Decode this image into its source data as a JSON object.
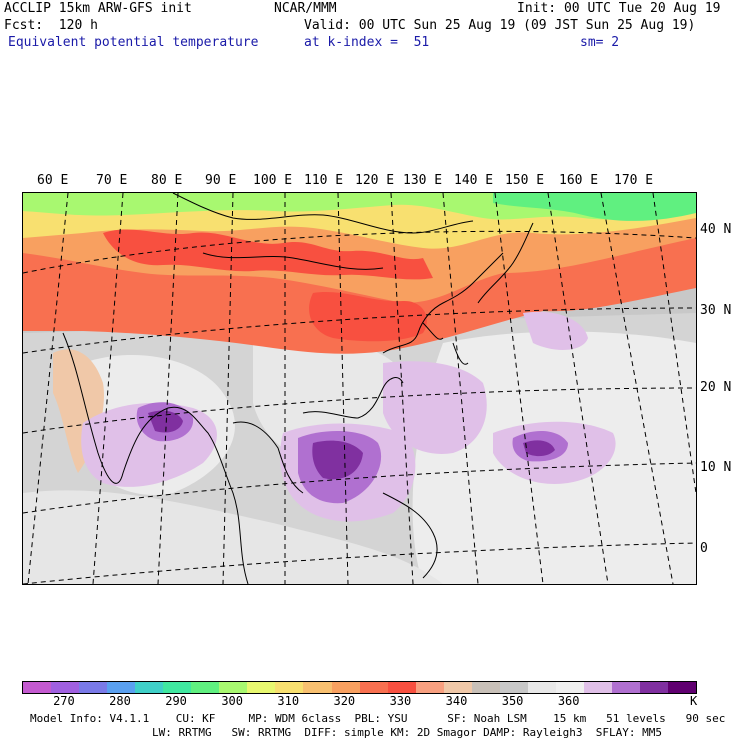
{
  "header": {
    "model_title": "ACCLIP 15km ARW-GFS init",
    "center": "NCAR/MMM",
    "init": "Init: 00 UTC Tue 20 Aug 19",
    "forecast": "Fcst:  120 h",
    "valid": "Valid: 00 UTC Sun 25 Aug 19 (09 JST Sun 25 Aug 19)",
    "field": "Equivalent potential temperature",
    "level": "at k-index =  51",
    "smoothing": "sm= 2"
  },
  "map": {
    "lon_labels": [
      "60 E",
      "70 E",
      "80 E",
      "90 E",
      "100 E",
      "110 E",
      "120 E",
      "130 E",
      "140 E",
      "150 E",
      "160 E",
      "170 E"
    ],
    "lat_labels": [
      "40 N",
      "30 N",
      "20 N",
      "10 N",
      "0"
    ]
  },
  "colorbar": {
    "colors": [
      "#c45ad0",
      "#a060e0",
      "#7a7ae8",
      "#5aa0f0",
      "#40d0c8",
      "#40e8a0",
      "#60f080",
      "#a8f870",
      "#e8f870",
      "#f8e070",
      "#f8c070",
      "#f8a060",
      "#f87050",
      "#f85040",
      "#f8a080",
      "#f0c8a8",
      "#c8c0b8",
      "#c8c8c8",
      "#e8e8e8",
      "#f0f0f0",
      "#e0c0e8",
      "#b070d0",
      "#8030a0",
      "#600070"
    ],
    "labels": [
      "270",
      "280",
      "290",
      "300",
      "310",
      "320",
      "330",
      "340",
      "350",
      "360"
    ],
    "unit": "K"
  },
  "footer": {
    "line1": "Model Info: V4.1.1    CU: KF     MP: WDM 6class  PBL: YSU      SF: Noah LSM    15 km   51 levels   90 sec",
    "line2": "LW: RRTMG   SW: RRTMG  DIFF: simple KM: 2D Smagor DAMP: Rayleigh3  SFLAY: MM5"
  }
}
